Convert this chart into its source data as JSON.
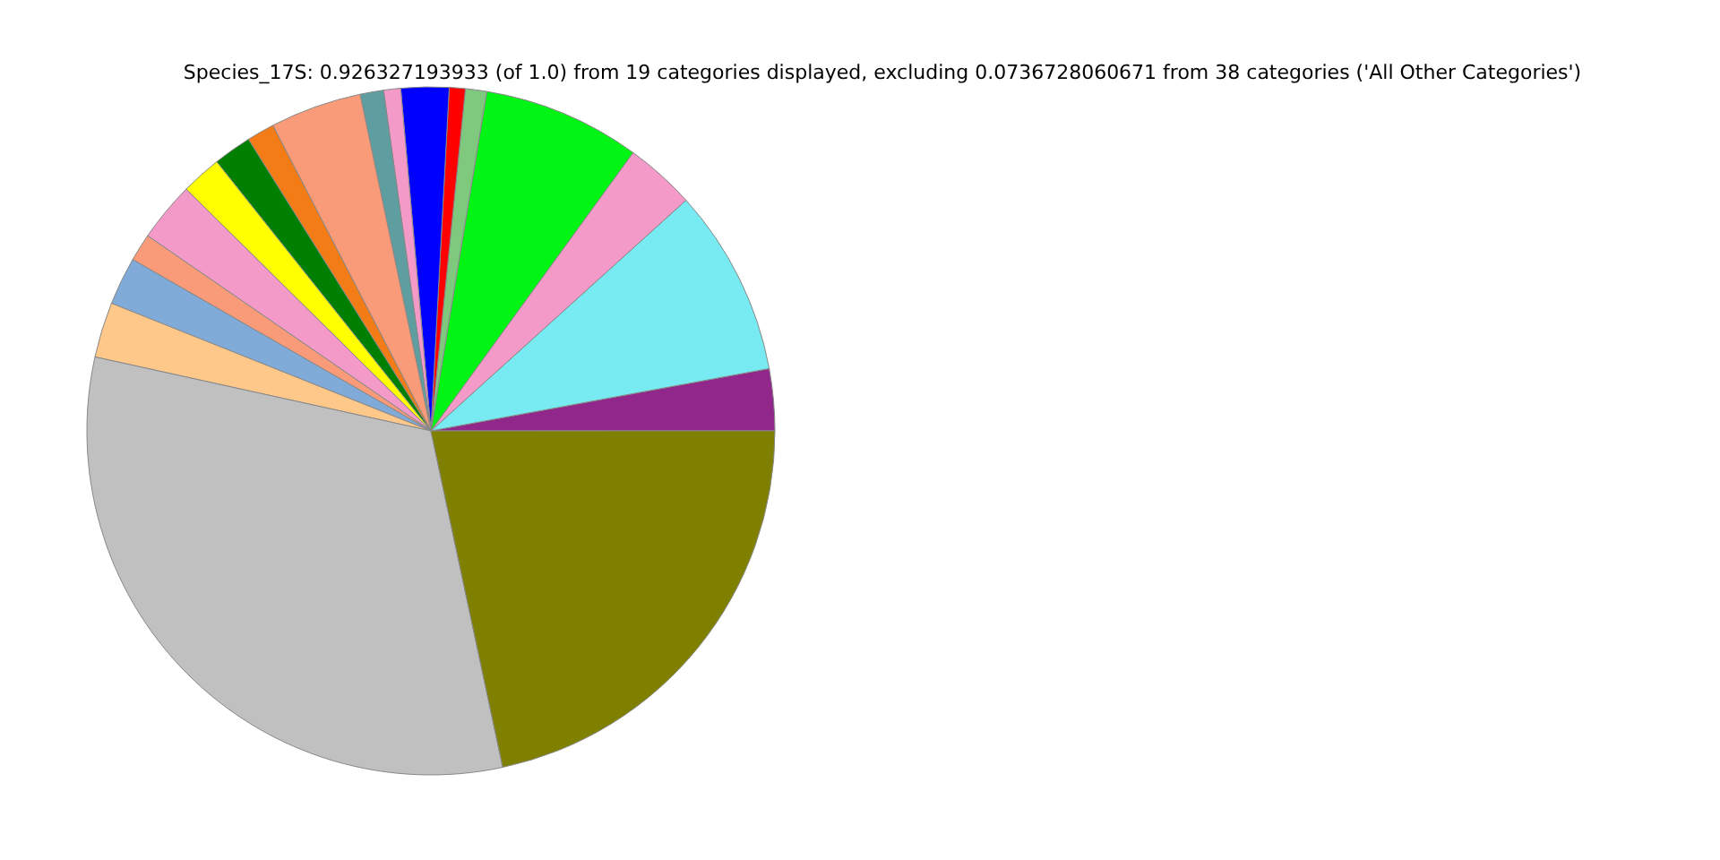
{
  "chart_data": {
    "type": "pie",
    "title": "Species_17S: 0.926327193933 (of 1.0) from 19 categories displayed, excluding 0.0736728060671 from 38 categories ('All Other Categories')",
    "categories": [
      null,
      null,
      null,
      null,
      null,
      null,
      null,
      null,
      null,
      null,
      null,
      null,
      null,
      null,
      null,
      null,
      null,
      null,
      null
    ],
    "values": [
      2.9,
      8.8,
      3.3,
      7.4,
      1.0,
      0.75,
      2.25,
      0.8,
      1.1,
      4.3,
      1.3,
      1.8,
      1.9,
      2.8,
      1.3,
      2.25,
      2.6,
      31.8,
      21.65
    ],
    "colors": [
      "#91278b",
      "#78ebf2",
      "#f49ac8",
      "#00f514",
      "#7fc97f",
      "#ff0000",
      "#0000ff",
      "#f49ac8",
      "#5f9ea0",
      "#f99b78",
      "#f47c16",
      "#007f00",
      "#ffff00",
      "#f49ac8",
      "#f99b78",
      "#80aad8",
      "#fec88a",
      "#c0c0c0",
      "#808000"
    ]
  }
}
